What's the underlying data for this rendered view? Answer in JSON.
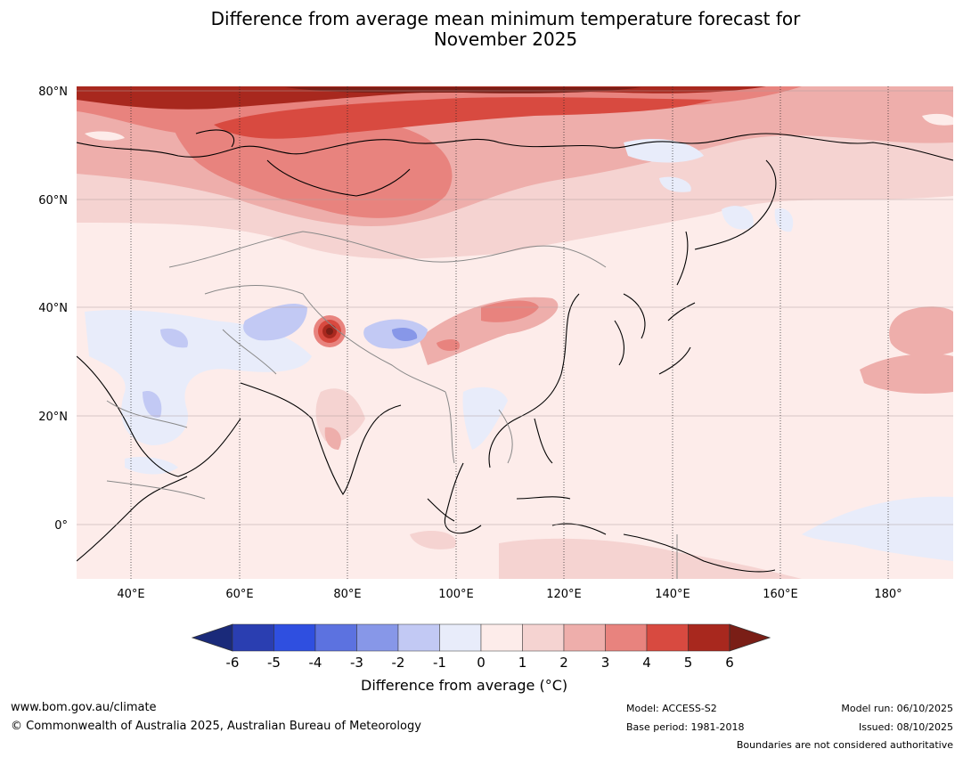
{
  "title_line1": "Difference from average mean minimum temperature forecast for",
  "title_line2": "November 2025",
  "lat_labels": [
    "80°N",
    "60°N",
    "40°N",
    "20°N",
    "0°"
  ],
  "lon_labels": [
    "40°E",
    "60°E",
    "80°E",
    "100°E",
    "120°E",
    "140°E",
    "160°E",
    "180°"
  ],
  "colorbar": {
    "ticks": [
      "-6",
      "-5",
      "-4",
      "-3",
      "-2",
      "-1",
      "0",
      "1",
      "2",
      "3",
      "4",
      "5",
      "6"
    ],
    "colors": [
      "#2a3eb1",
      "#2f4fe0",
      "#5c72e0",
      "#8797e8",
      "#c2c9f4",
      "#e8ecfa",
      "#fdecea",
      "#f5d3d1",
      "#eeaeab",
      "#e8837e",
      "#d84a40",
      "#a8281e"
    ],
    "under_color": "#1a2a7a",
    "over_color": "#7a1e16",
    "label": "Difference from average (°C)"
  },
  "footer": {
    "website": "www.bom.gov.au/climate",
    "copyright": "© Commonwealth of Australia 2025, Australian Bureau of Meteorology",
    "model": "Model: ACCESS-S2",
    "base_period": "Base period: 1981-2018",
    "model_run": "Model run: 06/10/2025",
    "issued": "Issued: 08/10/2025",
    "disclaimer": "Boundaries are not considered authoritative"
  }
}
